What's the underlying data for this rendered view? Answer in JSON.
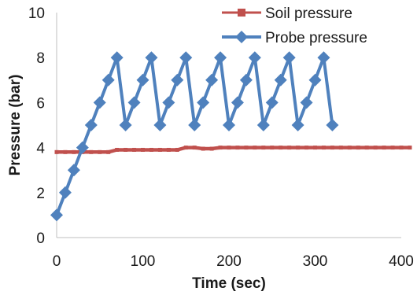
{
  "chart_data": {
    "type": "line",
    "title": "",
    "xlabel": "Time (sec)",
    "ylabel": "Pressure (bar)",
    "xlim": [
      0,
      400
    ],
    "ylim": [
      0,
      10
    ],
    "x_ticks": [
      "0",
      "100",
      "200",
      "300",
      "400"
    ],
    "y_ticks": [
      "0",
      "2",
      "4",
      "6",
      "8",
      "10"
    ],
    "grid": false,
    "legend_position": "top-right",
    "series": [
      {
        "name": "Soil pressure",
        "color": "#c0504d",
        "marker": "square",
        "x": [
          0,
          10,
          20,
          30,
          40,
          50,
          60,
          70,
          80,
          90,
          100,
          110,
          120,
          130,
          140,
          150,
          160,
          170,
          180,
          190,
          200,
          210,
          220,
          230,
          240,
          250,
          260,
          270,
          280,
          290,
          300,
          310,
          320,
          330,
          340,
          350,
          360,
          370,
          380,
          390,
          400,
          410
        ],
        "y": [
          3.8,
          3.8,
          3.8,
          3.8,
          3.8,
          3.8,
          3.8,
          3.9,
          3.9,
          3.9,
          3.9,
          3.9,
          3.9,
          3.9,
          3.9,
          4.0,
          4.0,
          3.95,
          3.95,
          4.0,
          4.0,
          4.0,
          4.0,
          4.0,
          4.0,
          4.0,
          4.0,
          4.0,
          4.0,
          4.0,
          4.0,
          4.0,
          4.0,
          4.0,
          4.0,
          4.0,
          4.0,
          4.0,
          4.0,
          4.0,
          4.0,
          4.0
        ]
      },
      {
        "name": "Probe pressure",
        "color": "#4f81bd",
        "marker": "diamond",
        "x": [
          0,
          10,
          20,
          30,
          40,
          50,
          60,
          70,
          80,
          90,
          100,
          110,
          120,
          130,
          140,
          150,
          160,
          170,
          180,
          190,
          200,
          210,
          220,
          230,
          240,
          250,
          260,
          270,
          280,
          290,
          300,
          310,
          320
        ],
        "y": [
          1,
          2,
          3,
          4,
          5,
          6,
          7,
          8,
          5,
          6,
          7,
          8,
          5,
          6,
          7,
          8,
          5,
          6,
          7,
          8,
          5,
          6,
          7,
          8,
          5,
          6,
          7,
          8,
          5,
          6,
          7,
          8,
          5
        ]
      }
    ]
  }
}
